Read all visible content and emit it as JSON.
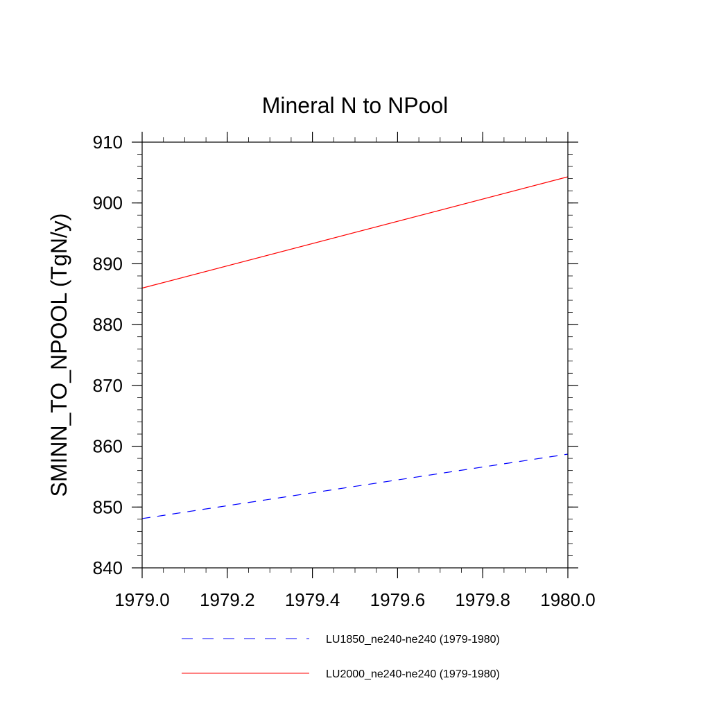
{
  "chart_data": {
    "type": "line",
    "title": "Mineral N to NPool",
    "xlabel": "",
    "ylabel": "SMINN_TO_NPOOL  (TgN/y)",
    "xlim": [
      1979.0,
      1980.0
    ],
    "ylim": [
      840,
      910
    ],
    "xticks": [
      1979.0,
      1979.2,
      1979.4,
      1979.6,
      1979.8,
      1980.0
    ],
    "xtick_labels": [
      "1979.0",
      "1979.2",
      "1979.4",
      "1979.6",
      "1979.8",
      "1980.0"
    ],
    "yticks": [
      840,
      850,
      860,
      870,
      880,
      890,
      900,
      910
    ],
    "ytick_labels": [
      "840",
      "850",
      "860",
      "870",
      "880",
      "890",
      "900",
      "910"
    ],
    "grid": false,
    "legend_position": "bottom",
    "series": [
      {
        "name": "LU1850_ne240-ne240 (1979-1980)",
        "color": "#0000ff",
        "dash": "dashed",
        "x": [
          1979.0,
          1980.0
        ],
        "y": [
          848.1,
          858.7
        ]
      },
      {
        "name": "LU2000_ne240-ne240 (1979-1980)",
        "color": "#ff0000",
        "dash": "solid",
        "x": [
          1979.0,
          1980.0
        ],
        "y": [
          886.0,
          904.3
        ]
      }
    ]
  }
}
